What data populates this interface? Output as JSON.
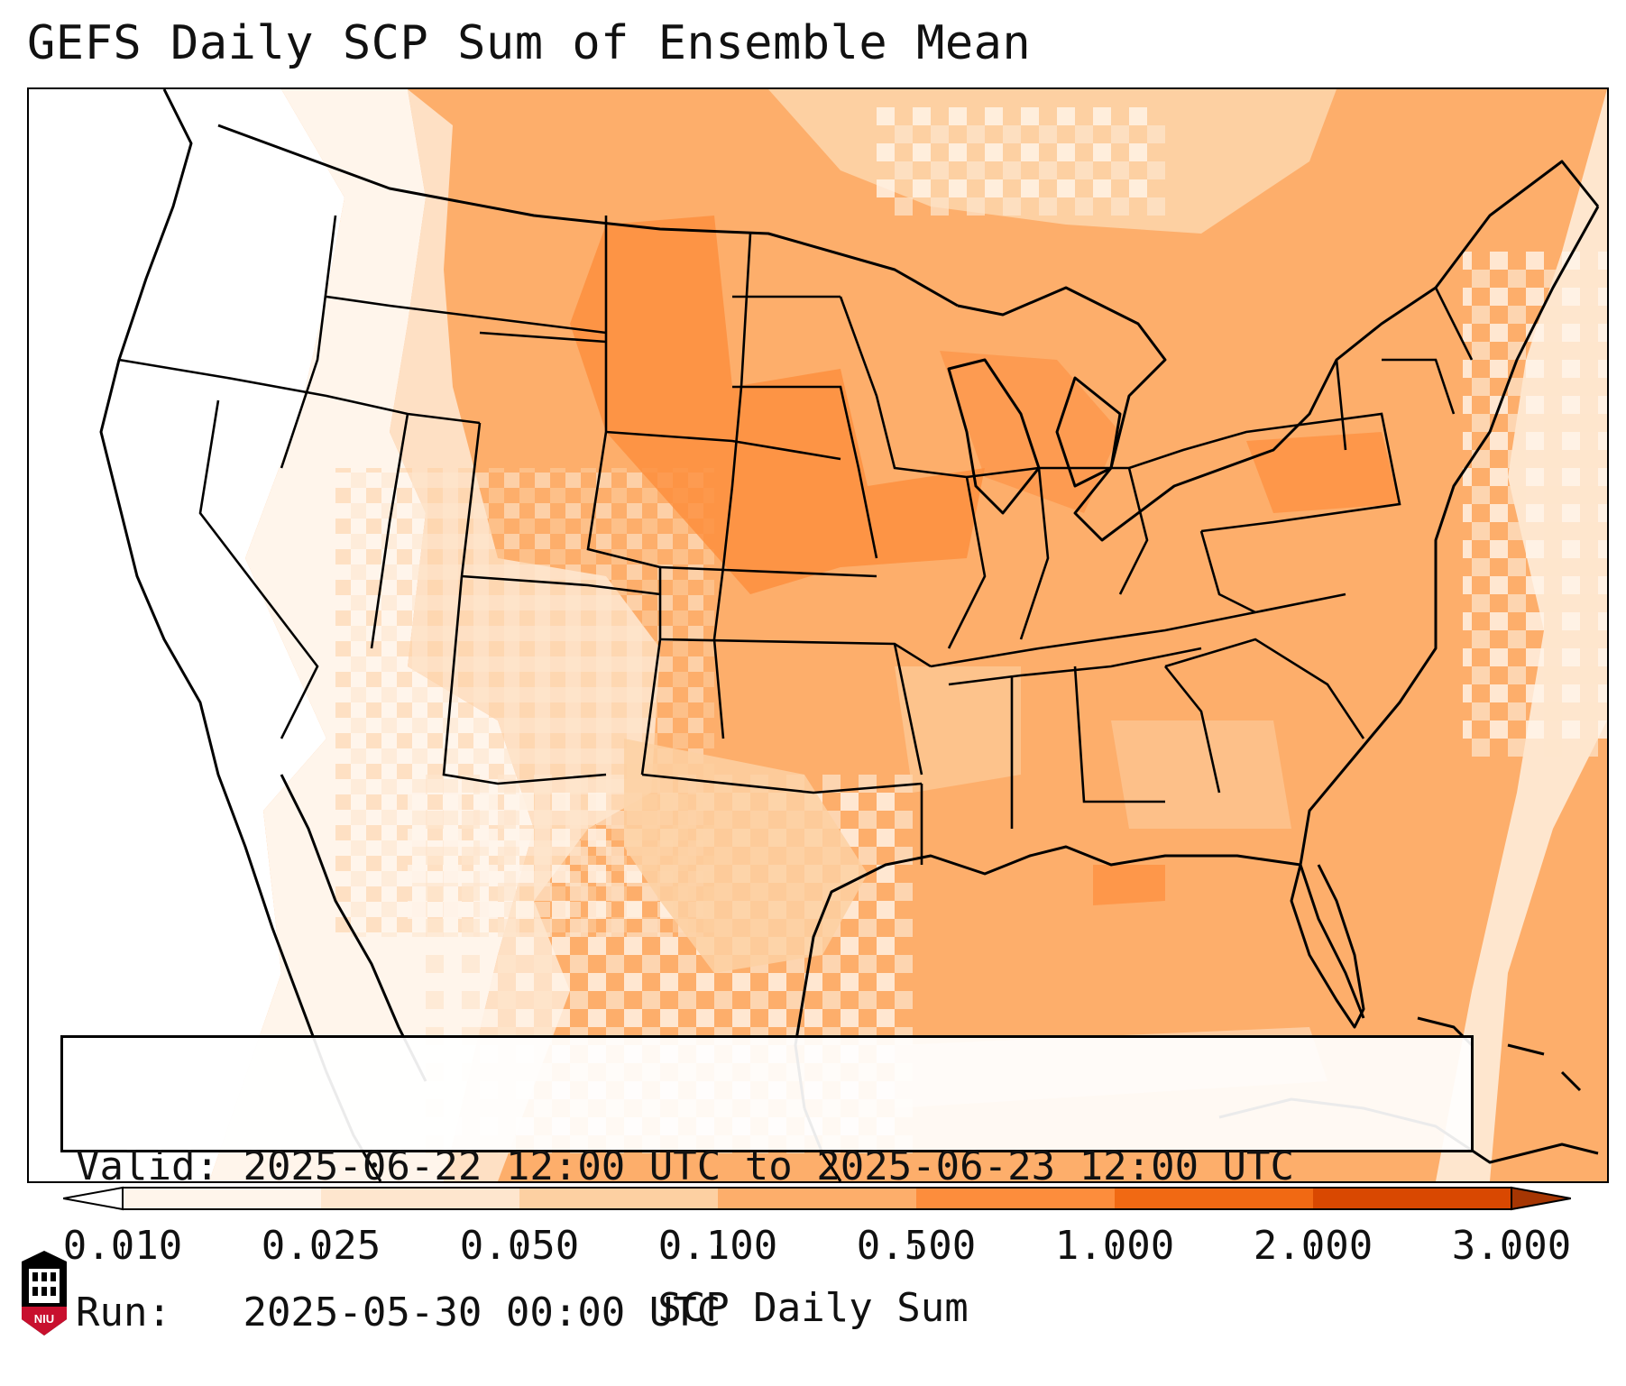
{
  "title": "GEFS Daily SCP Sum of Ensemble Mean",
  "info": {
    "valid_label": "Valid:",
    "valid_value": "2025-06-22 12:00 UTC to 2025-06-23 12:00 UTC",
    "run_label": "Run:",
    "run_value": "2025-05-30 00:00 UTC"
  },
  "colorbar": {
    "label": "SCP Daily Sum",
    "ticks": [
      "0.010",
      "0.025",
      "0.050",
      "0.100",
      "0.500",
      "1.000",
      "2.000",
      "3.000"
    ],
    "colors": [
      "#fff5eb",
      "#fee6ce",
      "#fdd0a2",
      "#fdae6b",
      "#fd8d3c",
      "#f16913",
      "#d94801",
      "#a63603"
    ],
    "extend": "both"
  },
  "logo": {
    "text": "NIU",
    "colors": {
      "primary": "#c8102e",
      "secondary": "#000000"
    }
  },
  "map": {
    "region": "Contiguous United States",
    "field": "SCP daily sum shading",
    "colors": {
      "lowest": "#ffffff",
      "very_low": "#fff5eb",
      "low": "#fee6ce",
      "moderate": "#fdd0a2",
      "elevated": "#fdae6b",
      "high": "#fd8d3c",
      "borders": "#000000"
    }
  }
}
